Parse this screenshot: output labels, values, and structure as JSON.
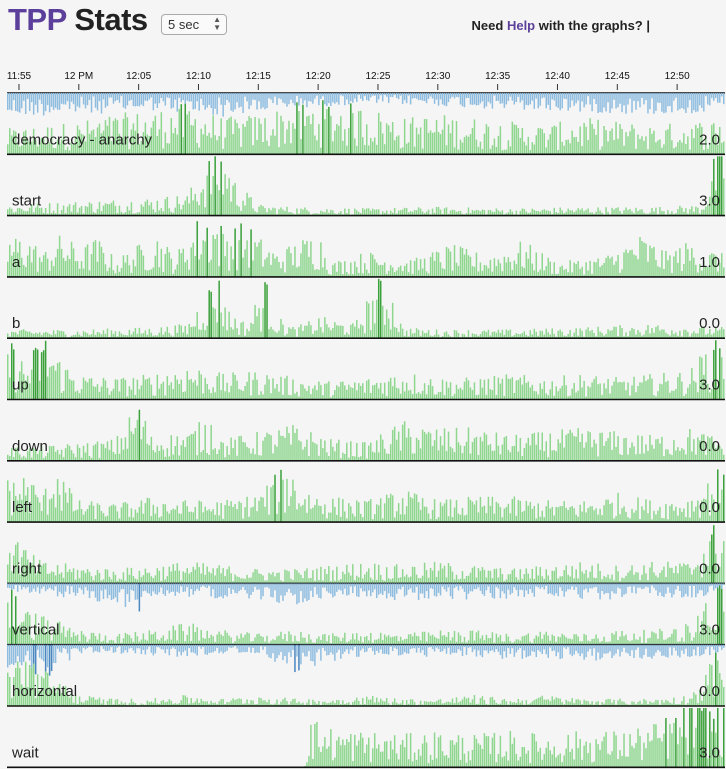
{
  "header": {
    "title_tpp": "TPP",
    "title_stats": "Stats",
    "interval": "5 sec",
    "help_prefix": "Need ",
    "help_link": "Help",
    "help_suffix": " with the graphs? |"
  },
  "colors": {
    "positive": "#8fd68f",
    "positive_dark": "#3aa03a",
    "negative": "#8fbde0",
    "negative_dark": "#4a86c0",
    "baseline": "#111111",
    "text": "#222222"
  },
  "chart_data": {
    "type": "bar",
    "x_ticks": [
      "11:55",
      "12 PM",
      "12:05",
      "12:10",
      "12:15",
      "12:20",
      "12:25",
      "12:30",
      "12:35",
      "12:40",
      "12:45",
      "12:50"
    ],
    "x_range": [
      "11:54",
      "12:54"
    ],
    "series": [
      {
        "name": "democracy - anarchy",
        "value": "2.0",
        "bipolar": true,
        "profile": [
          [
            0,
            0.35
          ],
          [
            3,
            0.4
          ],
          [
            6,
            0.45
          ],
          [
            9,
            0.55
          ],
          [
            12,
            0.6
          ],
          [
            15,
            0.7
          ],
          [
            18,
            0.5
          ],
          [
            21,
            0.55
          ],
          [
            24,
            0.7
          ],
          [
            27,
            0.75
          ],
          [
            30,
            0.65
          ],
          [
            33,
            0.5
          ],
          [
            36,
            0.55
          ],
          [
            39,
            0.5
          ],
          [
            42,
            0.45
          ],
          [
            45,
            0.4
          ],
          [
            48,
            0.5
          ],
          [
            51,
            0.45
          ],
          [
            54,
            0.4
          ],
          [
            57,
            0.45
          ],
          [
            60,
            0.5
          ]
        ],
        "neg_profile": [
          [
            0,
            0.55
          ],
          [
            6,
            0.5
          ],
          [
            12,
            0.4
          ],
          [
            18,
            0.55
          ],
          [
            24,
            0.35
          ],
          [
            30,
            0.25
          ],
          [
            36,
            0.3
          ],
          [
            42,
            0.4
          ],
          [
            48,
            0.45
          ],
          [
            54,
            0.5
          ],
          [
            60,
            0.45
          ]
        ]
      },
      {
        "name": "start",
        "value": "3.0",
        "profile": [
          [
            0,
            0.15
          ],
          [
            6,
            0.2
          ],
          [
            12,
            0.25
          ],
          [
            15,
            0.3
          ],
          [
            17,
            0.85
          ],
          [
            18,
            0.95
          ],
          [
            19,
            0.5
          ],
          [
            21,
            0.15
          ],
          [
            24,
            0.12
          ],
          [
            30,
            0.1
          ],
          [
            36,
            0.12
          ],
          [
            42,
            0.1
          ],
          [
            48,
            0.12
          ],
          [
            54,
            0.12
          ],
          [
            58,
            0.15
          ],
          [
            59.3,
            1.0
          ],
          [
            60,
            1.0
          ]
        ]
      },
      {
        "name": "a",
        "value": "1.0",
        "profile": [
          [
            0,
            0.55
          ],
          [
            1.5,
            0.6
          ],
          [
            3,
            0.35
          ],
          [
            4.5,
            0.6
          ],
          [
            6,
            0.4
          ],
          [
            7.5,
            0.55
          ],
          [
            9,
            0.25
          ],
          [
            12.5,
            0.6
          ],
          [
            14,
            0.3
          ],
          [
            16,
            0.85
          ],
          [
            17,
            0.95
          ],
          [
            18,
            0.7
          ],
          [
            20,
            0.75
          ],
          [
            21,
            0.55
          ],
          [
            22.5,
            0.35
          ],
          [
            26,
            0.65
          ],
          [
            27,
            0.2
          ],
          [
            30,
            0.35
          ],
          [
            34,
            0.25
          ],
          [
            37,
            0.45
          ],
          [
            40,
            0.3
          ],
          [
            43,
            0.5
          ],
          [
            46,
            0.2
          ],
          [
            50,
            0.3
          ],
          [
            53,
            0.6
          ],
          [
            55,
            0.35
          ],
          [
            57,
            0.5
          ],
          [
            60,
            0.3
          ]
        ]
      },
      {
        "name": "b",
        "value": "0.0",
        "profile": [
          [
            0,
            0.12
          ],
          [
            6,
            0.12
          ],
          [
            12,
            0.15
          ],
          [
            15,
            0.2
          ],
          [
            17.5,
            0.95
          ],
          [
            18.5,
            0.4
          ],
          [
            20,
            0.2
          ],
          [
            21.5,
            0.85
          ],
          [
            22.5,
            0.3
          ],
          [
            24,
            0.15
          ],
          [
            26,
            0.3
          ],
          [
            29,
            0.2
          ],
          [
            31,
            0.85
          ],
          [
            32,
            0.7
          ],
          [
            33,
            0.15
          ],
          [
            36,
            0.12
          ],
          [
            42,
            0.12
          ],
          [
            48,
            0.15
          ],
          [
            54,
            0.2
          ],
          [
            60,
            0.15
          ]
        ]
      },
      {
        "name": "up",
        "value": "3.0",
        "profile": [
          [
            0,
            0.9
          ],
          [
            1.5,
            0.5
          ],
          [
            3,
            0.95
          ],
          [
            4.5,
            0.55
          ],
          [
            6,
            0.35
          ],
          [
            9,
            0.3
          ],
          [
            12,
            0.35
          ],
          [
            15,
            0.5
          ],
          [
            18,
            0.35
          ],
          [
            21,
            0.4
          ],
          [
            24,
            0.3
          ],
          [
            27,
            0.25
          ],
          [
            30,
            0.3
          ],
          [
            33,
            0.4
          ],
          [
            36,
            0.3
          ],
          [
            39,
            0.3
          ],
          [
            42,
            0.35
          ],
          [
            45,
            0.3
          ],
          [
            48,
            0.35
          ],
          [
            51,
            0.3
          ],
          [
            54,
            0.35
          ],
          [
            57,
            0.4
          ],
          [
            59.3,
            0.95
          ],
          [
            60,
            0.9
          ]
        ]
      },
      {
        "name": "down",
        "value": "0.0",
        "profile": [
          [
            0,
            0.2
          ],
          [
            3,
            0.2
          ],
          [
            6,
            0.25
          ],
          [
            9,
            0.3
          ],
          [
            11,
            0.85
          ],
          [
            12,
            0.35
          ],
          [
            15,
            0.4
          ],
          [
            17,
            0.65
          ],
          [
            18,
            0.3
          ],
          [
            21,
            0.4
          ],
          [
            24,
            0.5
          ],
          [
            27,
            0.3
          ],
          [
            30,
            0.25
          ],
          [
            33,
            0.55
          ],
          [
            36,
            0.45
          ],
          [
            39,
            0.45
          ],
          [
            42,
            0.35
          ],
          [
            45,
            0.4
          ],
          [
            48,
            0.45
          ],
          [
            51,
            0.4
          ],
          [
            54,
            0.35
          ],
          [
            57,
            0.45
          ],
          [
            60,
            0.3
          ]
        ]
      },
      {
        "name": "left",
        "value": "0.0",
        "profile": [
          [
            0,
            0.6
          ],
          [
            1.5,
            0.7
          ],
          [
            3,
            0.4
          ],
          [
            4,
            0.95
          ],
          [
            5,
            0.5
          ],
          [
            6,
            0.3
          ],
          [
            9,
            0.25
          ],
          [
            12,
            0.35
          ],
          [
            15,
            0.3
          ],
          [
            18,
            0.3
          ],
          [
            21,
            0.4
          ],
          [
            23.5,
            0.85
          ],
          [
            24.5,
            0.5
          ],
          [
            27,
            0.35
          ],
          [
            30,
            0.3
          ],
          [
            33,
            0.45
          ],
          [
            36,
            0.3
          ],
          [
            39,
            0.35
          ],
          [
            42,
            0.35
          ],
          [
            45,
            0.3
          ],
          [
            48,
            0.3
          ],
          [
            51,
            0.4
          ],
          [
            54,
            0.3
          ],
          [
            57,
            0.35
          ],
          [
            59.5,
            0.75
          ],
          [
            60,
            0.6
          ]
        ]
      },
      {
        "name": "right",
        "value": "0.0",
        "profile": [
          [
            0,
            0.95
          ],
          [
            1,
            0.6
          ],
          [
            2,
            0.4
          ],
          [
            3,
            0.3
          ],
          [
            6,
            0.25
          ],
          [
            9,
            0.2
          ],
          [
            12,
            0.25
          ],
          [
            15,
            0.3
          ],
          [
            18,
            0.25
          ],
          [
            21,
            0.2
          ],
          [
            24,
            0.2
          ],
          [
            27,
            0.25
          ],
          [
            30,
            0.3
          ],
          [
            33,
            0.25
          ],
          [
            36,
            0.3
          ],
          [
            39,
            0.25
          ],
          [
            42,
            0.2
          ],
          [
            45,
            0.25
          ],
          [
            48,
            0.3
          ],
          [
            51,
            0.25
          ],
          [
            54,
            0.3
          ],
          [
            57,
            0.3
          ],
          [
            59.5,
            0.95
          ],
          [
            60,
            0.9
          ]
        ]
      },
      {
        "name": "vertical",
        "value": "3.0",
        "bipolar": true,
        "profile": [
          [
            0,
            0.9
          ],
          [
            1.5,
            0.5
          ],
          [
            3,
            0.4
          ],
          [
            6,
            0.2
          ],
          [
            9,
            0.15
          ],
          [
            12,
            0.2
          ],
          [
            15,
            0.3
          ],
          [
            18,
            0.2
          ],
          [
            21,
            0.15
          ],
          [
            24,
            0.2
          ],
          [
            27,
            0.15
          ],
          [
            30,
            0.2
          ],
          [
            33,
            0.15
          ],
          [
            36,
            0.2
          ],
          [
            39,
            0.2
          ],
          [
            42,
            0.15
          ],
          [
            45,
            0.2
          ],
          [
            48,
            0.15
          ],
          [
            51,
            0.2
          ],
          [
            54,
            0.2
          ],
          [
            57,
            0.3
          ],
          [
            59.5,
            0.95
          ],
          [
            60,
            0.9
          ]
        ],
        "neg_profile": [
          [
            0,
            0.15
          ],
          [
            3,
            0.3
          ],
          [
            6,
            0.35
          ],
          [
            9,
            0.5
          ],
          [
            11,
            0.7
          ],
          [
            12,
            0.3
          ],
          [
            15,
            0.3
          ],
          [
            18,
            0.35
          ],
          [
            21,
            0.4
          ],
          [
            24,
            0.5
          ],
          [
            27,
            0.35
          ],
          [
            30,
            0.3
          ],
          [
            33,
            0.45
          ],
          [
            36,
            0.35
          ],
          [
            39,
            0.4
          ],
          [
            42,
            0.35
          ],
          [
            45,
            0.3
          ],
          [
            48,
            0.45
          ],
          [
            51,
            0.35
          ],
          [
            54,
            0.3
          ],
          [
            57,
            0.35
          ],
          [
            60,
            0.2
          ]
        ]
      },
      {
        "name": "horizontal",
        "value": "0.0",
        "bipolar": true,
        "profile": [
          [
            0,
            0.55
          ],
          [
            1.5,
            0.85
          ],
          [
            3,
            0.5
          ],
          [
            4.5,
            0.4
          ],
          [
            6,
            0.15
          ],
          [
            9,
            0.1
          ],
          [
            12,
            0.1
          ],
          [
            15,
            0.15
          ],
          [
            18,
            0.1
          ],
          [
            21,
            0.15
          ],
          [
            24,
            0.1
          ],
          [
            27,
            0.1
          ],
          [
            30,
            0.15
          ],
          [
            33,
            0.1
          ],
          [
            36,
            0.1
          ],
          [
            39,
            0.15
          ],
          [
            42,
            0.1
          ],
          [
            45,
            0.15
          ],
          [
            48,
            0.1
          ],
          [
            51,
            0.1
          ],
          [
            54,
            0.1
          ],
          [
            57,
            0.15
          ],
          [
            59.5,
            0.85
          ],
          [
            60,
            0.6
          ]
        ],
        "neg_profile": [
          [
            0,
            0.7
          ],
          [
            1.5,
            0.55
          ],
          [
            3,
            0.85
          ],
          [
            4.5,
            0.5
          ],
          [
            6,
            0.2
          ],
          [
            9,
            0.2
          ],
          [
            12,
            0.25
          ],
          [
            15,
            0.3
          ],
          [
            18,
            0.2
          ],
          [
            21,
            0.2
          ],
          [
            24,
            0.65
          ],
          [
            26,
            0.45
          ],
          [
            28,
            0.35
          ],
          [
            30,
            0.3
          ],
          [
            33,
            0.25
          ],
          [
            36,
            0.3
          ],
          [
            39,
            0.3
          ],
          [
            42,
            0.35
          ],
          [
            45,
            0.3
          ],
          [
            48,
            0.4
          ],
          [
            51,
            0.3
          ],
          [
            54,
            0.35
          ],
          [
            57,
            0.3
          ],
          [
            60,
            0.2
          ]
        ]
      },
      {
        "name": "wait",
        "value": "3.0",
        "profile": [
          [
            0,
            0.0
          ],
          [
            24.8,
            0.0
          ],
          [
            25.2,
            0.7
          ],
          [
            27,
            0.55
          ],
          [
            30,
            0.5
          ],
          [
            33,
            0.45
          ],
          [
            36,
            0.5
          ],
          [
            39,
            0.45
          ],
          [
            42,
            0.5
          ],
          [
            45,
            0.45
          ],
          [
            48,
            0.5
          ],
          [
            51,
            0.5
          ],
          [
            54,
            0.6
          ],
          [
            57,
            0.9
          ],
          [
            59,
            1.0
          ],
          [
            60,
            1.0
          ]
        ]
      }
    ]
  }
}
